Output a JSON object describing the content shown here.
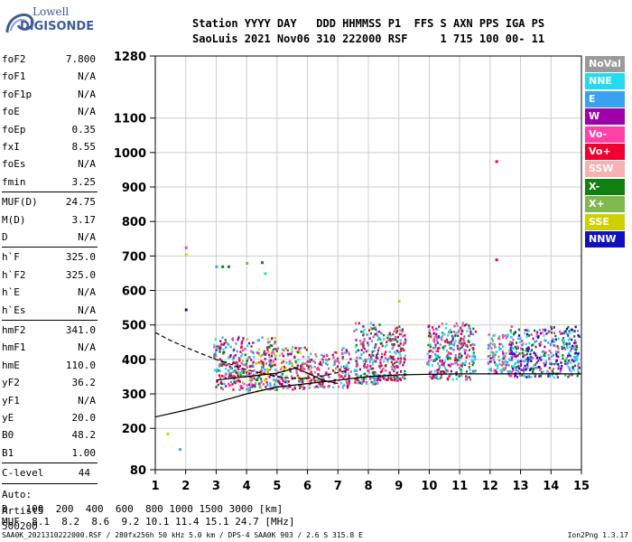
{
  "logo": {
    "top": "Lowell",
    "bottom": "DIGISONDE",
    "colors": [
      "#3d5a9e"
    ]
  },
  "header": {
    "line1": "Station YYYY DAY   DDD HHMMSS P1  FFS S AXN PPS IGA PS",
    "line2": "SaoLuis 2021 Nov06 310 222000 RSF     1 715 100 00- 11"
  },
  "params": [
    {
      "label": "foF2",
      "value": "7.800"
    },
    {
      "label": "foF1",
      "value": "N/A"
    },
    {
      "label": "foF1p",
      "value": "N/A"
    },
    {
      "label": "foE",
      "value": "N/A"
    },
    {
      "label": "foEp",
      "value": "0.35"
    },
    {
      "label": "fxI",
      "value": "8.55"
    },
    {
      "label": "foEs",
      "value": "N/A"
    },
    {
      "label": "fmin",
      "value": "3.25"
    },
    {
      "label": "MUF(D)",
      "value": "24.75"
    },
    {
      "label": "M(D)",
      "value": "3.17"
    },
    {
      "label": "D",
      "value": "N/A"
    },
    {
      "label": "h`F",
      "value": "325.0"
    },
    {
      "label": "h`F2",
      "value": "325.0"
    },
    {
      "label": "h`E",
      "value": "N/A"
    },
    {
      "label": "h`Es",
      "value": "N/A"
    },
    {
      "label": "hmF2",
      "value": "341.0"
    },
    {
      "label": "hmF1",
      "value": "N/A"
    },
    {
      "label": "hmE",
      "value": "110.0"
    },
    {
      "label": "yF2",
      "value": "36.2"
    },
    {
      "label": "yF1",
      "value": "N/A"
    },
    {
      "label": "yE",
      "value": "20.0"
    },
    {
      "label": "B0",
      "value": "48.2"
    },
    {
      "label": "B1",
      "value": "1.00"
    }
  ],
  "clevel": {
    "label": "C-level",
    "value": "44"
  },
  "auto": {
    "line1": "Auto:",
    "line2": "Artist5",
    "line3": "500200"
  },
  "legend": [
    {
      "label": "NoVal",
      "color": "#9a9a9a"
    },
    {
      "label": "NNE",
      "color": "#22dcee"
    },
    {
      "label": "E",
      "color": "#3aa0f0"
    },
    {
      "label": "W",
      "color": "#a000a8"
    },
    {
      "label": "Vo-",
      "color": "#ff40a8"
    },
    {
      "label": "Vo+",
      "color": "#f00030"
    },
    {
      "label": "SSW",
      "color": "#f8b0b0"
    },
    {
      "label": "X-",
      "color": "#108010"
    },
    {
      "label": "X+",
      "color": "#80b850"
    },
    {
      "label": "SSE",
      "color": "#d0d000"
    },
    {
      "label": "NNW",
      "color": "#1010c0"
    }
  ],
  "bottom": {
    "d_row": "D   100  200  400  600  800 1000 1500 3000 [km]",
    "muf_row": "MUF  8.1  8.2  8.6  9.2 10.1 11.4 15.1 24.7 [MHz]"
  },
  "footer": {
    "left": "SAA0K_2021310222000.RSF / 280fx256h 50 kHz 5.0 km / DPS-4 SAA0K 903 / 2.6 S 315.8 E",
    "right": "Ion2Png 1.3.17"
  },
  "chart_data": {
    "type": "scatter",
    "xlabel": "",
    "ylabel": "",
    "xlim": [
      1,
      15
    ],
    "ylim": [
      80,
      1280
    ],
    "xticks": [
      1,
      2,
      3,
      4,
      5,
      6,
      7,
      8,
      9,
      10,
      11,
      12,
      13,
      14,
      15
    ],
    "yticks": [
      80,
      200,
      300,
      400,
      500,
      600,
      700,
      800,
      900,
      1000,
      1100,
      1280
    ],
    "grid": true,
    "clusters": [
      {
        "x": [
          2.9,
          3.7
        ],
        "y": [
          315,
          470
        ],
        "colors": [
          "W",
          "Vo-",
          "Vo+",
          "E",
          "X-",
          "NNE"
        ]
      },
      {
        "x": [
          3.7,
          5.0
        ],
        "y": [
          310,
          470
        ],
        "colors": [
          "W",
          "Vo-",
          "Vo+",
          "E",
          "X-",
          "NNE",
          "SSE"
        ]
      },
      {
        "x": [
          5.0,
          6.0
        ],
        "y": [
          315,
          440
        ],
        "colors": [
          "W",
          "Vo-",
          "Vo+",
          "X-",
          "NNE",
          "SSE"
        ]
      },
      {
        "x": [
          6.0,
          6.7
        ],
        "y": [
          320,
          420
        ],
        "colors": [
          "Vo-",
          "Vo+",
          "W",
          "E",
          "X+"
        ]
      },
      {
        "x": [
          6.8,
          7.4
        ],
        "y": [
          320,
          440
        ],
        "colors": [
          "Vo-",
          "Vo+",
          "W",
          "NNE",
          "X+"
        ]
      },
      {
        "x": [
          7.5,
          8.4
        ],
        "y": [
          330,
          510
        ],
        "colors": [
          "Vo+",
          "Vo-",
          "W",
          "E",
          "X-",
          "NNE"
        ]
      },
      {
        "x": [
          8.4,
          9.2
        ],
        "y": [
          340,
          500
        ],
        "colors": [
          "Vo+",
          "Vo-",
          "W",
          "X-",
          "NNE"
        ]
      },
      {
        "x": [
          9.9,
          11.5
        ],
        "y": [
          345,
          510
        ],
        "colors": [
          "Vo+",
          "Vo-",
          "W",
          "X-",
          "E",
          "NNE"
        ]
      },
      {
        "x": [
          11.9,
          12.6
        ],
        "y": [
          360,
          480
        ],
        "colors": [
          "NNE",
          "E",
          "Vo-",
          "W",
          "X+"
        ]
      },
      {
        "x": [
          12.6,
          14.9
        ],
        "y": [
          350,
          500
        ],
        "colors": [
          "NNE",
          "E",
          "W",
          "Vo-",
          "X-",
          "NNW"
        ]
      }
    ],
    "isolated_points": [
      {
        "x": 2.0,
        "y": 725,
        "color": "Vo-"
      },
      {
        "x": 2.0,
        "y": 705,
        "color": "SSE"
      },
      {
        "x": 3.2,
        "y": 670,
        "color": "X-"
      },
      {
        "x": 3.4,
        "y": 670,
        "color": "X-"
      },
      {
        "x": 3.0,
        "y": 670,
        "color": "E"
      },
      {
        "x": 4.0,
        "y": 680,
        "color": "X+"
      },
      {
        "x": 4.5,
        "y": 682,
        "color": "X-"
      },
      {
        "x": 4.6,
        "y": 650,
        "color": "NNE"
      },
      {
        "x": 12.2,
        "y": 975,
        "color": "Vo+"
      },
      {
        "x": 12.2,
        "y": 690,
        "color": "Vo+"
      },
      {
        "x": 1.8,
        "y": 140,
        "color": "E"
      },
      {
        "x": 1.4,
        "y": 185,
        "color": "SSE"
      },
      {
        "x": 2.0,
        "y": 545,
        "color": "NNW"
      },
      {
        "x": 9.0,
        "y": 570,
        "color": "SSE"
      }
    ],
    "solid_trace": {
      "x": [
        1.0,
        2.0,
        3.0,
        4.0,
        5.0,
        6.0,
        7.0,
        8.0,
        9.0,
        10.0,
        11.0,
        12.0,
        13.0,
        14.0,
        15.0
      ],
      "y": [
        233,
        253,
        275,
        300,
        320,
        330,
        340,
        350,
        355,
        357,
        358,
        358,
        358,
        358,
        358
      ]
    },
    "dashed_trace": {
      "x": [
        1.0,
        1.5,
        2.0,
        2.5,
        3.0,
        3.5,
        4.0,
        4.5,
        5.0,
        5.5,
        6.0,
        6.5,
        7.0,
        7.3
      ],
      "y": [
        478,
        455,
        435,
        417,
        400,
        385,
        370,
        360,
        350,
        345,
        345,
        352,
        362,
        368
      ]
    },
    "solid_trace_b": {
      "x": [
        3.0,
        4.0,
        5.0,
        5.6,
        6.0,
        6.5,
        7.0
      ],
      "y": [
        340,
        350,
        360,
        375,
        360,
        340,
        330
      ]
    }
  }
}
